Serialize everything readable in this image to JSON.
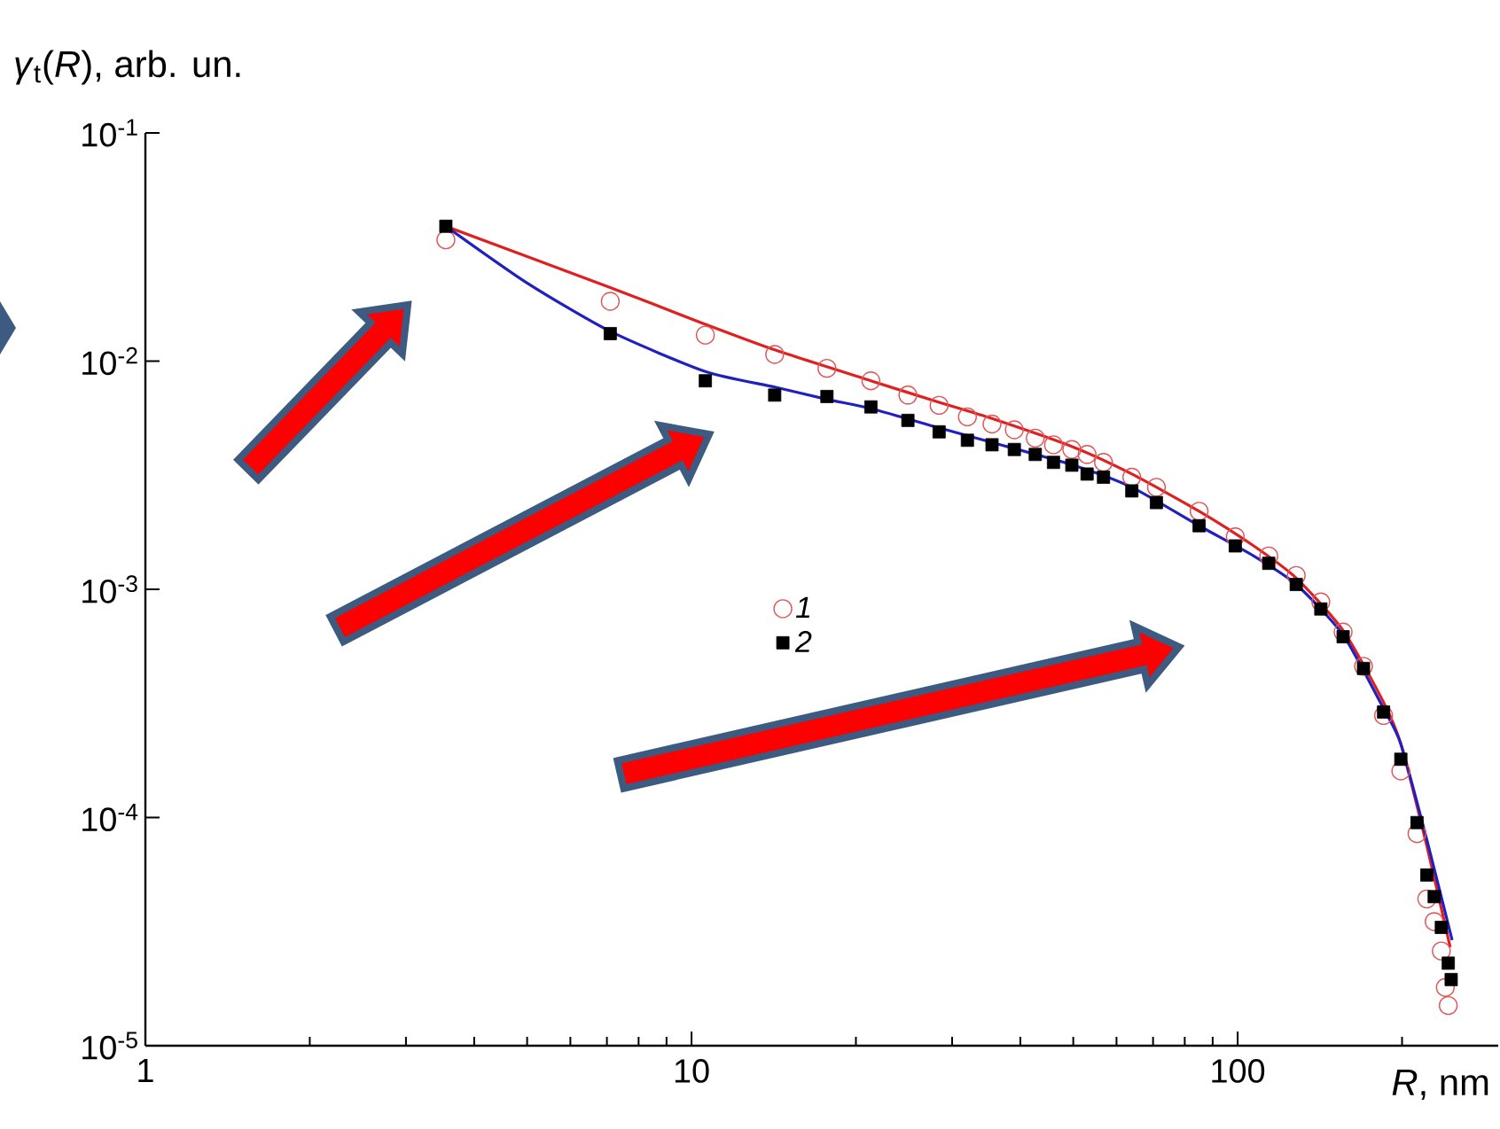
{
  "chart_data": {
    "type": "scatter",
    "log": "xy",
    "xlabel": "*R*, nm",
    "ylabel": "*γ*$_{t}$(*R*), arb. un.",
    "xlim": [
      1,
      300
    ],
    "ylim": [
      1e-05,
      0.1
    ],
    "xticks": [
      1,
      10,
      100
    ],
    "yticks": [
      {
        "value": 1e-05,
        "label": "10$^{-5}$"
      },
      {
        "value": 0.0001,
        "label": "10$^{-4}$"
      },
      {
        "value": 0.001,
        "label": "10$^{-3}$"
      },
      {
        "value": 0.01,
        "label": "10$^{-2}$"
      },
      {
        "value": 0.1,
        "label": "10$^{-1}$"
      }
    ],
    "legend": "center",
    "grid": false,
    "series": [
      {
        "name": "1",
        "marker": "circle",
        "color": "#e05555",
        "x": [
          3.55,
          7.1,
          10.6,
          14.2,
          17.7,
          21.3,
          24.9,
          28.4,
          32,
          35.5,
          39,
          42.6,
          46,
          49.7,
          53,
          56.8,
          64,
          71,
          85,
          99,
          114,
          128,
          142,
          156,
          170,
          185,
          199,
          213,
          222,
          229,
          236,
          240,
          243
        ],
        "values": [
          0.034,
          0.0183,
          0.013,
          0.0107,
          0.0093,
          0.0082,
          0.0071,
          0.0064,
          0.0057,
          0.0053,
          0.005,
          0.0046,
          0.0043,
          0.0041,
          0.0039,
          0.0036,
          0.0031,
          0.0028,
          0.0022,
          0.0017,
          0.0014,
          0.00115,
          0.00088,
          0.00065,
          0.00046,
          0.00028,
          0.00016,
          8.5e-05,
          4.4e-05,
          3.5e-05,
          2.6e-05,
          1.8e-05,
          1.5e-05
        ]
      },
      {
        "name": "2",
        "marker": "square",
        "color": "#000000",
        "x": [
          3.55,
          7.1,
          10.6,
          14.2,
          17.7,
          21.3,
          24.9,
          28.4,
          32,
          35.5,
          39,
          42.6,
          46,
          49.7,
          53,
          56.8,
          64,
          71,
          85,
          99,
          114,
          128,
          142,
          156,
          170,
          185,
          199,
          213,
          222,
          229,
          236,
          243,
          246
        ],
        "values": [
          0.039,
          0.0132,
          0.0082,
          0.0071,
          0.007,
          0.0063,
          0.0055,
          0.0049,
          0.0045,
          0.0043,
          0.0041,
          0.0039,
          0.0036,
          0.0035,
          0.0032,
          0.0031,
          0.0027,
          0.0024,
          0.0019,
          0.00155,
          0.0013,
          0.00105,
          0.00082,
          0.00062,
          0.00045,
          0.00029,
          0.00018,
          9.5e-05,
          5.6e-05,
          4.5e-05,
          3.3e-05,
          2.3e-05,
          1.95e-05
        ]
      },
      {
        "type": "line",
        "marker": "none",
        "color": "#e02020",
        "x": [
          3.55,
          7.1,
          10.6,
          14.2,
          21.3,
          28.4,
          35.5,
          50,
          64,
          85,
          107,
          128,
          156,
          185,
          199,
          222,
          245
        ],
        "values": [
          0.039,
          0.021,
          0.0145,
          0.0112,
          0.0082,
          0.0066,
          0.0056,
          0.0042,
          0.0032,
          0.0022,
          0.00155,
          0.00112,
          0.00066,
          0.00032,
          0.00021,
          7.5e-05,
          2.7e-05
        ]
      },
      {
        "type": "line",
        "marker": "none",
        "color": "#2020c0",
        "x": [
          3.55,
          5,
          7.1,
          10.6,
          14.2,
          17.7,
          21.3,
          28.4,
          35.5,
          50,
          64,
          85,
          107,
          128,
          156,
          185,
          199,
          222,
          247
        ],
        "values": [
          0.039,
          0.022,
          0.0135,
          0.009,
          0.0077,
          0.0068,
          0.0062,
          0.0051,
          0.0044,
          0.0035,
          0.0028,
          0.0019,
          0.0014,
          0.00105,
          0.00063,
          0.0003,
          0.00021,
          8e-05,
          2.9e-05
        ]
      }
    ]
  }
}
